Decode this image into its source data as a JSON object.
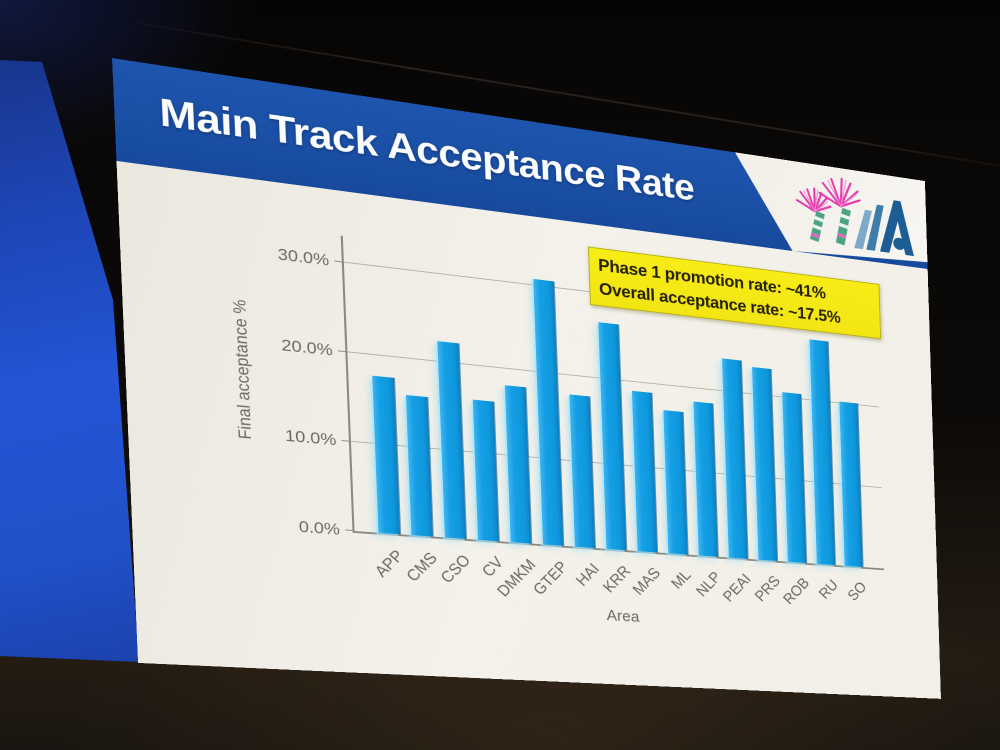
{
  "slide": {
    "title": "Main Track Acceptance Rate",
    "annotation_box": {
      "line1": "Phase 1 promotion rate: ~41%",
      "line2": "Overall acceptance rate: ~17.5%",
      "bg_color": "#f6e918",
      "text_color": "#262105"
    },
    "logo": {
      "icon": "conference-flower-logo",
      "flower_color": "#e23caf",
      "stem_color": "#4aa583",
      "mark_color": "#1c5e94"
    }
  },
  "chart_data": {
    "type": "bar",
    "title": "",
    "xlabel": "Area",
    "ylabel": "Final acceptance %",
    "categories": [
      "APP",
      "CMS",
      "CSO",
      "CV",
      "DMKM",
      "GTEP",
      "HAI",
      "KRR",
      "MAS",
      "ML",
      "NLP",
      "PEAI",
      "PRS",
      "ROB",
      "RU",
      "SO"
    ],
    "values": [
      17.7,
      15.9,
      22.4,
      16.1,
      18.1,
      30.8,
      17.8,
      26.6,
      18.9,
      17.0,
      18.4,
      24.0,
      23.3,
      20.7,
      27.5,
      20.2
    ],
    "unit": "%",
    "yticks": [
      30,
      20,
      10,
      0
    ],
    "ytick_labels": [
      "30.0%",
      "20.0%",
      "10.0%",
      "0.0%"
    ],
    "ylim": [
      0,
      33
    ],
    "grid": true,
    "legend_position": "none",
    "bar_color": "#129fe2"
  }
}
